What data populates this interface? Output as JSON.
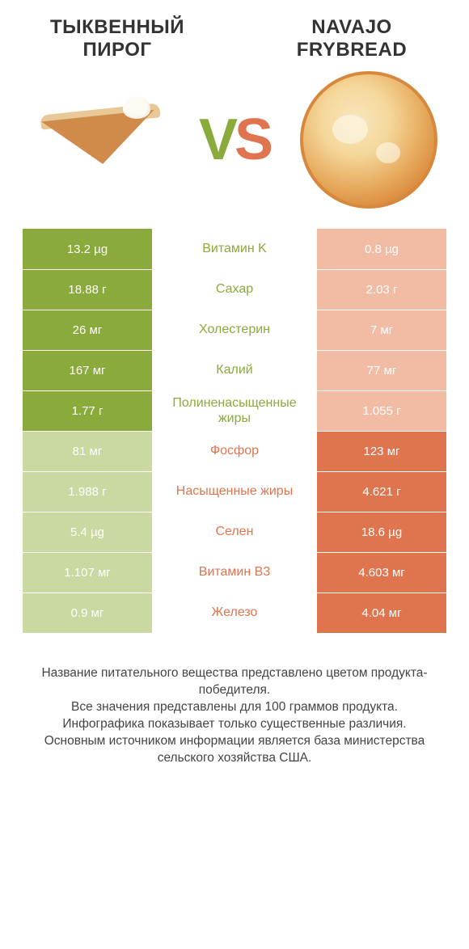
{
  "header": {
    "left_title": "ТЫКВЕННЫЙ ПИРОГ",
    "right_title": "NAVAJO FRYBREAD"
  },
  "vs": {
    "v": "V",
    "s": "S"
  },
  "colors": {
    "green": "#8aaa3b",
    "green_dim": "#c9d9a1",
    "orange": "#e0744e",
    "orange_dim": "#f1bba4",
    "background": "#ffffff",
    "text": "#333333"
  },
  "typography": {
    "title_fontsize": 24,
    "cell_fontsize": 15,
    "label_fontsize": 16,
    "footer_fontsize": 15.5
  },
  "rows": [
    {
      "left": "13.2 µg",
      "label": "Витамин K",
      "right": "0.8 µg",
      "winner": "left"
    },
    {
      "left": "18.88 г",
      "label": "Сахар",
      "right": "2.03 г",
      "winner": "left"
    },
    {
      "left": "26 мг",
      "label": "Холестерин",
      "right": "7 мг",
      "winner": "left"
    },
    {
      "left": "167 мг",
      "label": "Калий",
      "right": "77 мг",
      "winner": "left"
    },
    {
      "left": "1.77 г",
      "label": "Полиненасыщенные жиры",
      "right": "1.055 г",
      "winner": "left"
    },
    {
      "left": "81 мг",
      "label": "Фосфор",
      "right": "123 мг",
      "winner": "right"
    },
    {
      "left": "1.988 г",
      "label": "Насыщенные жиры",
      "right": "4.621 г",
      "winner": "right"
    },
    {
      "left": "5.4 µg",
      "label": "Селен",
      "right": "18.6 µg",
      "winner": "right"
    },
    {
      "left": "1.107 мг",
      "label": "Витамин B3",
      "right": "4.603 мг",
      "winner": "right"
    },
    {
      "left": "0.9 мг",
      "label": "Железо",
      "right": "4.04 мг",
      "winner": "right"
    }
  ],
  "footer": {
    "line1": "Название питательного вещества представлено цветом продукта-победителя.",
    "line2": "Все значения представлены для 100 граммов продукта.",
    "line3": "Инфографика показывает только существенные различия.",
    "line4": "Основным источником информации является база министерства сельского хозяйства США."
  }
}
